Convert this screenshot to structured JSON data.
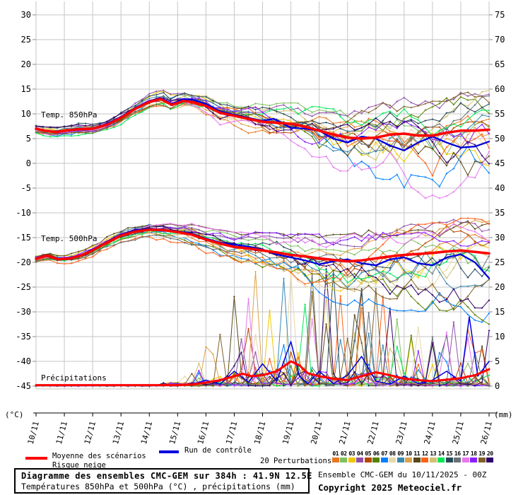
{
  "axes": {
    "left_unit": "(°C)",
    "right_unit": "(mm)",
    "left_ticks": [
      30,
      25,
      20,
      15,
      10,
      5,
      0,
      -5,
      -10,
      -15,
      -20,
      -25,
      -30,
      -35,
      -40,
      -45
    ],
    "right_ticks": [
      75,
      70,
      65,
      60,
      55,
      50,
      45,
      40,
      35,
      30,
      25,
      20,
      15,
      10,
      5,
      0
    ],
    "dates": [
      "10/11",
      "11/11",
      "12/11",
      "13/11",
      "14/11",
      "15/11",
      "16/11",
      "17/11",
      "18/11",
      "19/11",
      "20/11",
      "21/11",
      "22/11",
      "23/11",
      "24/11",
      "25/11",
      "26/11"
    ]
  },
  "panel_labels": {
    "t850": "Temp. 850hPa",
    "t500": "Temp. 500hPa",
    "precip": "Précipitations"
  },
  "legend": {
    "mean_label": "Moyenne des scénarios",
    "snow_label": "Risque neige",
    "control_label": "Run de contrôle",
    "perturbations_label": "20 Perturbations",
    "mean_color": "#ff0000",
    "control_color": "#0000dd",
    "perturbation_ids": [
      "01",
      "02",
      "03",
      "04",
      "05",
      "06",
      "07",
      "08",
      "09",
      "10",
      "11",
      "12",
      "13",
      "14",
      "15",
      "16",
      "17",
      "18",
      "19",
      "20"
    ],
    "perturbation_colors": [
      "#e87820",
      "#80c060",
      "#f0c800",
      "#9050a8",
      "#b84800",
      "#588000",
      "#0080ff",
      "#e8d8a8",
      "#3888b0",
      "#e0a048",
      "#584818",
      "#ff6018",
      "#d0c070",
      "#00e858",
      "#284858",
      "#687078",
      "#e878f0",
      "#8820ff",
      "#806028",
      "#300068"
    ]
  },
  "footer": {
    "title": "Diagramme des ensembles CMC-GEM sur 384h : 41.9N 12.5E",
    "subtitle": "Températures 850hPa et 500hPa (°C) , précipitations (mm)",
    "run_info": "Ensemble CMC-GEM du 10/11/2025 - 00Z",
    "copyright": "Copyright 2025 Meteociel.fr"
  },
  "chart_data": {
    "type": "line",
    "title": "Diagramme des ensembles CMC-GEM sur 384h : 41.9N 12.5E",
    "x_dates": [
      "10/11",
      "11/11",
      "12/11",
      "13/11",
      "14/11",
      "15/11",
      "16/11",
      "17/11",
      "18/11",
      "19/11",
      "20/11",
      "21/11",
      "22/11",
      "23/11",
      "24/11",
      "25/11",
      "26/11"
    ],
    "x_unit": "days from 10/11 (0 .. 16)",
    "ylim_left_celsius": [
      -45,
      30
    ],
    "ylim_right_mm": [
      0,
      75
    ],
    "grid": true,
    "legend_position": "bottom",
    "n_members": 20,
    "panels": [
      {
        "name": "t850",
        "label": "Temp. 850hPa",
        "unit": "°C",
        "mean": [
          [
            0,
            7
          ],
          [
            0.3,
            6.6
          ],
          [
            0.7,
            6.3
          ],
          [
            1,
            6.6
          ],
          [
            1.5,
            6.9
          ],
          [
            2,
            7
          ],
          [
            2.5,
            7.8
          ],
          [
            3,
            9.2
          ],
          [
            3.5,
            11
          ],
          [
            4,
            12.4
          ],
          [
            4.4,
            13
          ],
          [
            4.8,
            11.8
          ],
          [
            5.2,
            12.6
          ],
          [
            5.5,
            12.4
          ],
          [
            6,
            11.6
          ],
          [
            6.5,
            10.2
          ],
          [
            7,
            9.6
          ],
          [
            7.5,
            9
          ],
          [
            8,
            8.4
          ],
          [
            8.5,
            8.2
          ],
          [
            9,
            8
          ],
          [
            9.5,
            7.4
          ],
          [
            10,
            6.6
          ],
          [
            10.5,
            5.8
          ],
          [
            11,
            5.2
          ],
          [
            11.5,
            5
          ],
          [
            12,
            5.2
          ],
          [
            12.5,
            5.8
          ],
          [
            13,
            6
          ],
          [
            13.5,
            5.6
          ],
          [
            14,
            5.6
          ],
          [
            14.5,
            6.2
          ],
          [
            15,
            6.6
          ],
          [
            15.5,
            6.6
          ],
          [
            16,
            6.8
          ]
        ],
        "control": [
          [
            0,
            7
          ],
          [
            0.5,
            6.4
          ],
          [
            1,
            6.6
          ],
          [
            1.5,
            7
          ],
          [
            2,
            7.1
          ],
          [
            2.5,
            8
          ],
          [
            3,
            9.4
          ],
          [
            3.5,
            11.2
          ],
          [
            4,
            12.6
          ],
          [
            4.4,
            13.2
          ],
          [
            4.8,
            12
          ],
          [
            5.2,
            13
          ],
          [
            5.6,
            12.8
          ],
          [
            6,
            12
          ],
          [
            6.5,
            10.5
          ],
          [
            7,
            9.8
          ],
          [
            7.5,
            9.2
          ],
          [
            8,
            8.6
          ],
          [
            8.4,
            9
          ],
          [
            9,
            7.2
          ],
          [
            9.5,
            7
          ],
          [
            10,
            6.6
          ],
          [
            10.5,
            5
          ],
          [
            11,
            4.2
          ],
          [
            11.5,
            5.4
          ],
          [
            12,
            5
          ],
          [
            12.5,
            3.6
          ],
          [
            13,
            2.6
          ],
          [
            13.5,
            4.2
          ],
          [
            14,
            5.4
          ],
          [
            14.5,
            4.2
          ],
          [
            15,
            3.2
          ],
          [
            15.5,
            3.4
          ],
          [
            16,
            4.4
          ]
        ],
        "spread_hi": [
          1,
          1,
          1.2,
          1.3,
          1.5,
          1.8,
          2.2,
          2.5,
          3,
          3.5,
          4,
          4.5,
          5.5,
          6,
          6,
          6.5,
          6.5
        ],
        "spread_lo": [
          1,
          1,
          1.2,
          1.3,
          1.5,
          1.8,
          2.5,
          3,
          3.5,
          5,
          6.5,
          7.5,
          9,
          11,
          11,
          10.5,
          11
        ]
      },
      {
        "name": "t500",
        "label": "Temp. 500hPa",
        "unit": "°C",
        "mean": [
          [
            0,
            -19.3
          ],
          [
            0.4,
            -18.6
          ],
          [
            0.8,
            -19.4
          ],
          [
            1.2,
            -19.2
          ],
          [
            1.6,
            -18.6
          ],
          [
            2,
            -17.6
          ],
          [
            2.5,
            -16
          ],
          [
            3,
            -14.6
          ],
          [
            3.5,
            -13.8
          ],
          [
            4,
            -13.4
          ],
          [
            4.5,
            -13.5
          ],
          [
            5,
            -13.9
          ],
          [
            5.5,
            -14.4
          ],
          [
            6,
            -15.4
          ],
          [
            6.5,
            -16.2
          ],
          [
            7,
            -16.9
          ],
          [
            7.5,
            -17.2
          ],
          [
            8,
            -17.6
          ],
          [
            8.5,
            -18
          ],
          [
            9,
            -18.5
          ],
          [
            9.5,
            -18.8
          ],
          [
            10,
            -19.2
          ],
          [
            10.5,
            -19.5
          ],
          [
            11,
            -19.8
          ],
          [
            11.5,
            -19.6
          ],
          [
            12,
            -19.2
          ],
          [
            12.5,
            -18.8
          ],
          [
            13,
            -18.5
          ],
          [
            13.5,
            -18.3
          ],
          [
            14,
            -18.1
          ],
          [
            14.5,
            -17.8
          ],
          [
            15,
            -17.6
          ],
          [
            15.5,
            -17.9
          ],
          [
            16,
            -18.2
          ]
        ],
        "control": [
          [
            0,
            -19.3
          ],
          [
            0.4,
            -18.5
          ],
          [
            0.8,
            -19.3
          ],
          [
            1.2,
            -19.1
          ],
          [
            1.6,
            -18.5
          ],
          [
            2,
            -17.4
          ],
          [
            2.5,
            -15.8
          ],
          [
            3,
            -14.4
          ],
          [
            3.5,
            -13.6
          ],
          [
            4,
            -13.2
          ],
          [
            4.5,
            -13.4
          ],
          [
            5,
            -13.8
          ],
          [
            5.5,
            -14.2
          ],
          [
            6,
            -15.2
          ],
          [
            6.5,
            -16
          ],
          [
            7,
            -16.4
          ],
          [
            7.5,
            -16.8
          ],
          [
            8,
            -17.4
          ],
          [
            8.5,
            -18.4
          ],
          [
            9,
            -19
          ],
          [
            9.5,
            -19.6
          ],
          [
            10,
            -20.4
          ],
          [
            10.5,
            -19.8
          ],
          [
            11,
            -19.4
          ],
          [
            11.5,
            -20.2
          ],
          [
            12,
            -20.6
          ],
          [
            12.5,
            -19.4
          ],
          [
            13,
            -19
          ],
          [
            13.5,
            -20.2
          ],
          [
            14,
            -20.6
          ],
          [
            14.5,
            -19
          ],
          [
            15,
            -18.4
          ],
          [
            15.5,
            -20
          ],
          [
            16,
            -23.2
          ]
        ],
        "spread_hi": [
          0.8,
          0.8,
          1,
          1.2,
          1.2,
          1.5,
          2,
          2.5,
          3,
          3.5,
          4,
          4.5,
          5,
          5,
          5,
          5.5,
          5.5
        ],
        "spread_lo": [
          0.8,
          0.8,
          1,
          1.2,
          1.5,
          2,
          2.5,
          3,
          4,
          5.5,
          6.5,
          7.5,
          8.5,
          9.5,
          10,
          11,
          12
        ]
      },
      {
        "name": "precip",
        "label": "Précipitations",
        "unit": "mm",
        "mean": [
          [
            0,
            0.2
          ],
          [
            5,
            0.2
          ],
          [
            5.5,
            0.3
          ],
          [
            6,
            0.7
          ],
          [
            6.5,
            1.2
          ],
          [
            7,
            2
          ],
          [
            7.3,
            2.5
          ],
          [
            7.6,
            2
          ],
          [
            8,
            2.2
          ],
          [
            8.5,
            3
          ],
          [
            9,
            5
          ],
          [
            9.3,
            4.2
          ],
          [
            9.6,
            2.6
          ],
          [
            10,
            2
          ],
          [
            10.5,
            1.5
          ],
          [
            11,
            1.2
          ],
          [
            11.5,
            2
          ],
          [
            12,
            2.8
          ],
          [
            12.5,
            2.2
          ],
          [
            13,
            1.5
          ],
          [
            13.5,
            1.2
          ],
          [
            14,
            1
          ],
          [
            14.5,
            1.3
          ],
          [
            15,
            1.6
          ],
          [
            15.5,
            2.2
          ],
          [
            16,
            3.4
          ]
        ],
        "control": [
          [
            0,
            0.1
          ],
          [
            5,
            0.1
          ],
          [
            5.5,
            0.3
          ],
          [
            6,
            1.2
          ],
          [
            6.5,
            0.4
          ],
          [
            7,
            3
          ],
          [
            7.5,
            0.8
          ],
          [
            8,
            4.5
          ],
          [
            8.5,
            1
          ],
          [
            9,
            9
          ],
          [
            9.3,
            2
          ],
          [
            9.6,
            0.5
          ],
          [
            10,
            3
          ],
          [
            10.5,
            0.5
          ],
          [
            11,
            2.2
          ],
          [
            11.5,
            6
          ],
          [
            12,
            1
          ],
          [
            12.5,
            0.4
          ],
          [
            13,
            2
          ],
          [
            13.5,
            0.5
          ],
          [
            14,
            1.2
          ],
          [
            14.5,
            3
          ],
          [
            15,
            1
          ],
          [
            15.3,
            14
          ],
          [
            15.6,
            2
          ],
          [
            16,
            5
          ]
        ],
        "member_max_amp": [
          0,
          0,
          0,
          0,
          0,
          1,
          8,
          22,
          26,
          32,
          26,
          22,
          20,
          15,
          10,
          15,
          16
        ]
      }
    ]
  }
}
